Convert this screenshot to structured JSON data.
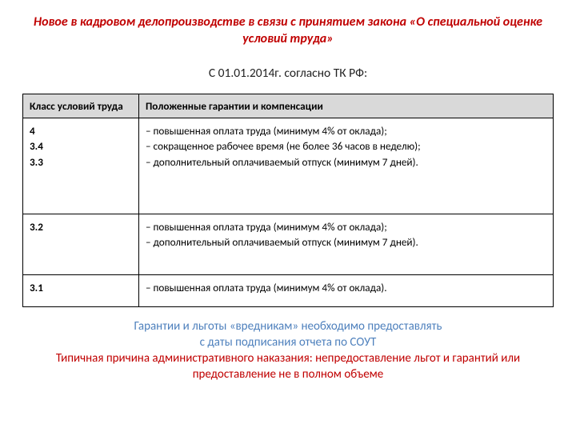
{
  "title": "Новое в кадровом делопроизводстве в связи с принятием закона «О специальной оценке условий труда»",
  "subtitle": "С 01.01.2014г. согласно ТК РФ:",
  "table": {
    "header": {
      "col1": "Класс условий труда",
      "col2": "Положенные гарантии и компенсации"
    },
    "rows": [
      {
        "class": "4\n3.4\n3.3",
        "benefits": "– повышенная оплата труда (минимум 4% от оклада);\n– сокращенное рабочее время (не более 36 часов в неделю);\n– дополнительный оплачиваемый отпуск (минимум 7 дней)."
      },
      {
        "class": "3.2",
        "benefits": "– повышенная оплата труда (минимум 4% от оклада);\n– дополнительный оплачиваемый отпуск (минимум 7 дней)."
      },
      {
        "class": "3.1",
        "benefits": "– повышенная оплата труда (минимум 4% от оклада)."
      }
    ]
  },
  "note": {
    "blue1": "Гарантии и льготы «вредникам» необходимо предоставлять",
    "blue2": "с даты подписания отчета по СОУТ",
    "red": "Типичная причина административного наказания: непредоставление льгот и гарантий или предоставление не в полном объеме"
  }
}
